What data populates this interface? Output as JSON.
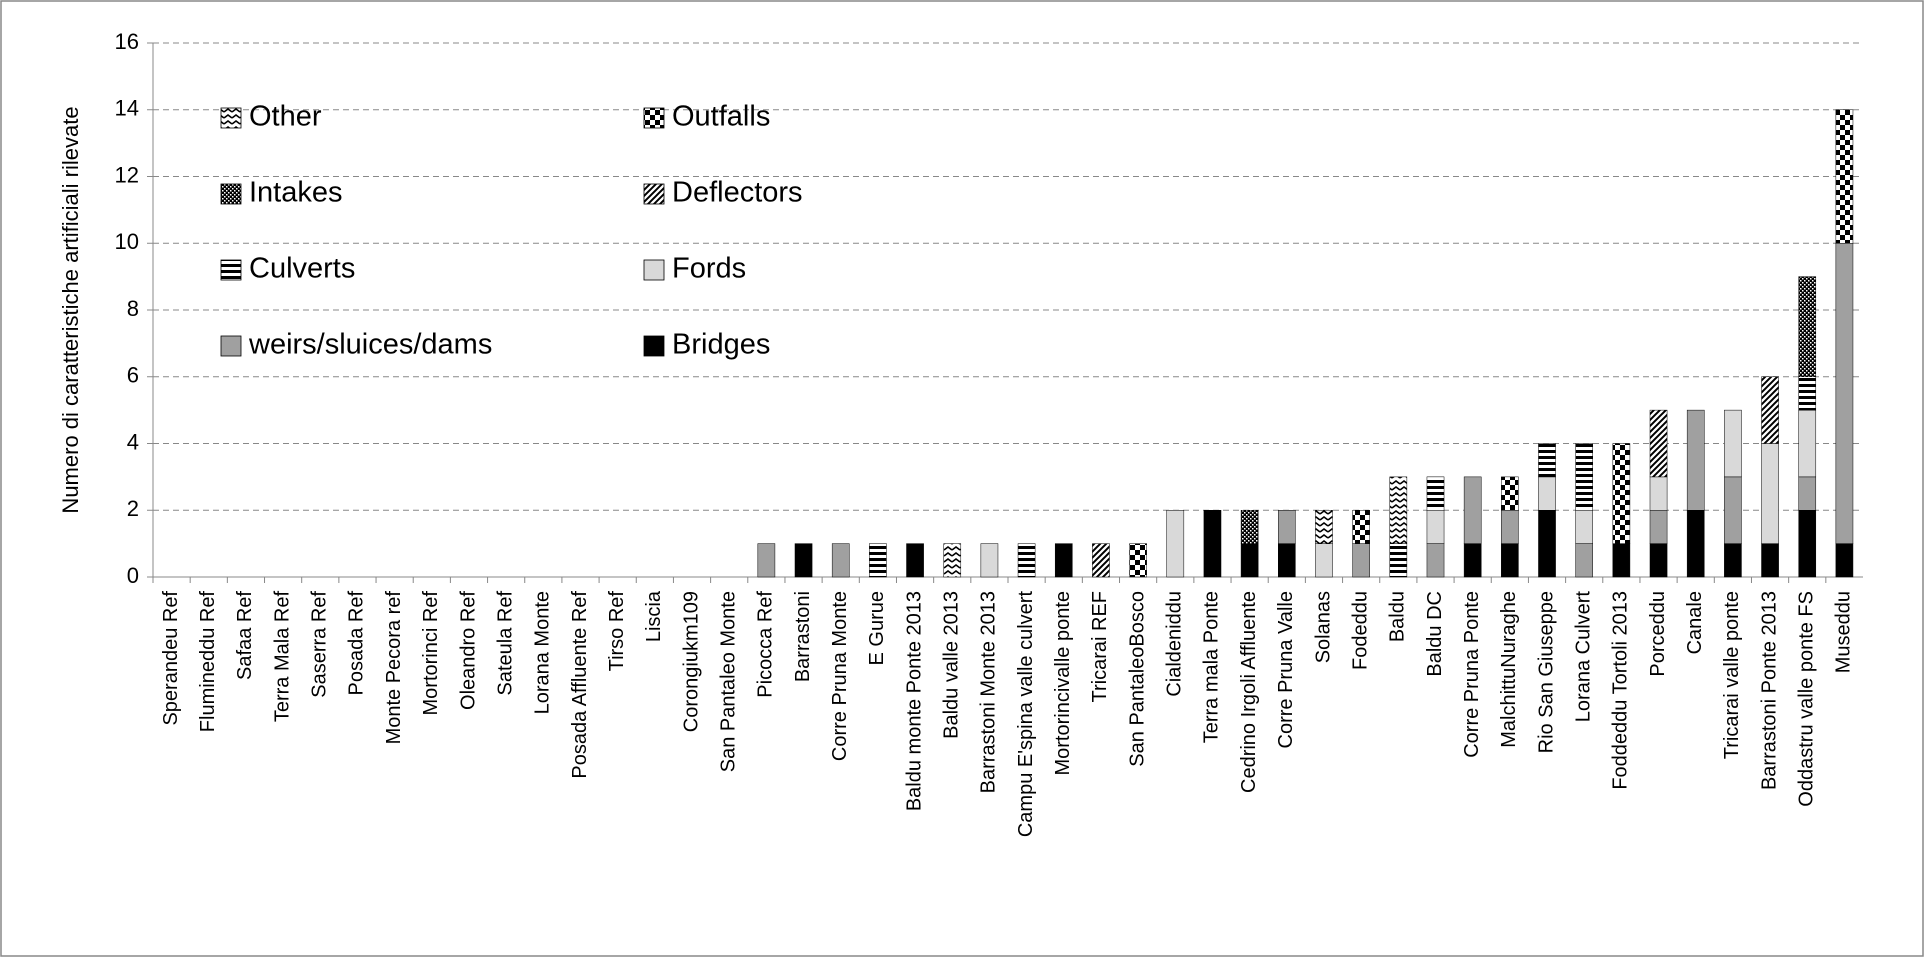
{
  "chart_data": {
    "type": "stacked_bar",
    "y_label": "Numero di caratteristiche artificiali rilevate",
    "categories": [
      "Sperandeu Ref",
      "Flumineddu Ref",
      "Safaa Ref",
      "Terra Mala Ref",
      "Saserra Ref",
      "Posada Ref",
      "Monte Pecora ref",
      "Mortorinci Ref",
      "Oleandro Ref",
      "Sateula Ref",
      "Lorana Monte",
      "Posada Affluente Ref",
      "Tirso Ref",
      "Liscia",
      "Corongiukm109",
      "San Pantaleo Monte",
      "Picocca Ref",
      "Barrastoni",
      "Corre Pruna Monte",
      "E Gurue",
      "Baldu monte Ponte 2013",
      "Baldu valle 2013",
      "Barrastoni Monte 2013",
      "Campu E'spina valle culvert",
      "Mortorincivalle ponte",
      "Tricarai REF",
      "San PantaleoBosco",
      "Cialdeniddu",
      "Terra mala Ponte",
      "Cedrino Irgoli Affluente",
      "Corre Pruna Valle",
      "Solanas",
      "Fodeddu",
      "Baldu",
      "Baldu DC",
      "Corre Pruna Ponte",
      "MalchittuNuraghe",
      "Rio San Giuseppe",
      "Lorana Culvert",
      "Foddeddu Tortoli 2013",
      "Porceddu",
      "Canale",
      "Tricarai valle ponte",
      "Barrastoni Ponte 2013",
      "Oddastru valle ponte FS",
      "Museddu"
    ],
    "series": [
      {
        "name": "Bridges",
        "color": "#000000",
        "pattern": "solid",
        "values": [
          0,
          0,
          0,
          0,
          0,
          0,
          0,
          0,
          0,
          0,
          0,
          0,
          0,
          0,
          0,
          0,
          0,
          1,
          0,
          0,
          1,
          0,
          0,
          0,
          1,
          0,
          0,
          0,
          2,
          1,
          1,
          0,
          0,
          0,
          0,
          1,
          1,
          2,
          0,
          1,
          1,
          2,
          1,
          1,
          2,
          1
        ]
      },
      {
        "name": "weirs/sluices/dams",
        "color": "#a0a0a0",
        "pattern": "solid",
        "values": [
          0,
          0,
          0,
          0,
          0,
          0,
          0,
          0,
          0,
          0,
          0,
          0,
          0,
          0,
          0,
          0,
          1,
          0,
          1,
          0,
          0,
          0,
          0,
          0,
          0,
          0,
          0,
          0,
          0,
          0,
          1,
          0,
          1,
          0,
          1,
          2,
          1,
          0,
          1,
          0,
          1,
          3,
          2,
          0,
          1,
          9
        ]
      },
      {
        "name": "Fords",
        "color": "#d9d9d9",
        "pattern": "solid",
        "values": [
          0,
          0,
          0,
          0,
          0,
          0,
          0,
          0,
          0,
          0,
          0,
          0,
          0,
          0,
          0,
          0,
          0,
          0,
          0,
          0,
          0,
          0,
          1,
          0,
          0,
          0,
          0,
          2,
          0,
          0,
          0,
          1,
          0,
          0,
          1,
          0,
          0,
          1,
          1,
          0,
          1,
          0,
          2,
          3,
          2,
          0
        ]
      },
      {
        "name": "Culverts",
        "color": "#000000",
        "pattern": "horizontal",
        "values": [
          0,
          0,
          0,
          0,
          0,
          0,
          0,
          0,
          0,
          0,
          0,
          0,
          0,
          0,
          0,
          0,
          0,
          0,
          0,
          1,
          0,
          0,
          0,
          1,
          0,
          0,
          0,
          0,
          0,
          0,
          0,
          0,
          0,
          1,
          1,
          0,
          0,
          1,
          2,
          0,
          0,
          0,
          0,
          0,
          1,
          0
        ]
      },
      {
        "name": "Deflectors",
        "color": "#000000",
        "pattern": "diagonal",
        "values": [
          0,
          0,
          0,
          0,
          0,
          0,
          0,
          0,
          0,
          0,
          0,
          0,
          0,
          0,
          0,
          0,
          0,
          0,
          0,
          0,
          0,
          0,
          0,
          0,
          0,
          1,
          0,
          0,
          0,
          0,
          0,
          0,
          0,
          0,
          0,
          0,
          0,
          0,
          0,
          0,
          2,
          0,
          0,
          2,
          0,
          0
        ]
      },
      {
        "name": "Intakes",
        "color": "#000000",
        "pattern": "crosshatch",
        "values": [
          0,
          0,
          0,
          0,
          0,
          0,
          0,
          0,
          0,
          0,
          0,
          0,
          0,
          0,
          0,
          0,
          0,
          0,
          0,
          0,
          0,
          0,
          0,
          0,
          0,
          0,
          0,
          0,
          0,
          1,
          0,
          0,
          0,
          0,
          0,
          0,
          0,
          0,
          0,
          0,
          0,
          0,
          0,
          0,
          3,
          0
        ]
      },
      {
        "name": "Outfalls",
        "color": "#000000",
        "pattern": "checker",
        "values": [
          0,
          0,
          0,
          0,
          0,
          0,
          0,
          0,
          0,
          0,
          0,
          0,
          0,
          0,
          0,
          0,
          0,
          0,
          0,
          0,
          0,
          0,
          0,
          0,
          0,
          0,
          1,
          0,
          0,
          0,
          0,
          0,
          1,
          0,
          0,
          0,
          1,
          0,
          0,
          3,
          0,
          0,
          0,
          0,
          0,
          4
        ]
      },
      {
        "name": "Other",
        "color": "#000000",
        "pattern": "zigzag",
        "values": [
          0,
          0,
          0,
          0,
          0,
          0,
          0,
          0,
          0,
          0,
          0,
          0,
          0,
          0,
          0,
          0,
          0,
          0,
          0,
          0,
          0,
          1,
          0,
          0,
          0,
          0,
          0,
          0,
          0,
          0,
          0,
          1,
          0,
          2,
          0,
          0,
          0,
          0,
          0,
          0,
          0,
          0,
          0,
          0,
          0,
          0
        ]
      }
    ],
    "ylim": [
      0,
      16
    ],
    "yticks": [
      0,
      2,
      4,
      6,
      8,
      10,
      12,
      14,
      16
    ],
    "grid": true,
    "legend": "top-left"
  }
}
